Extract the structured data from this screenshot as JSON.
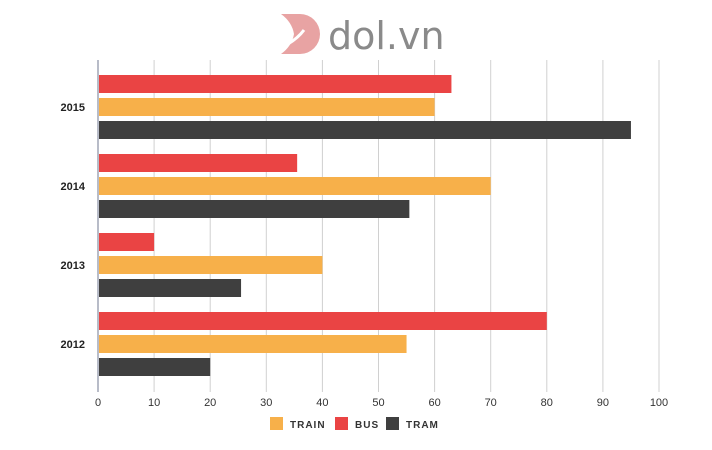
{
  "logo": {
    "text": "dol.vn",
    "color": "#e8a3a3"
  },
  "chart_data": {
    "type": "bar",
    "orientation": "horizontal",
    "title": "",
    "xlabel": "",
    "ylabel": "",
    "categories": [
      "2012",
      "2013",
      "2014",
      "2015"
    ],
    "series": [
      {
        "name": "BUS",
        "color": "#ea4444",
        "values": [
          80,
          10,
          35.5,
          63
        ]
      },
      {
        "name": "TRAIN",
        "color": "#f7b04a",
        "values": [
          55,
          40,
          70,
          60
        ]
      },
      {
        "name": "TRAM",
        "color": "#3f3f3f",
        "values": [
          20,
          25.5,
          55.5,
          95
        ]
      }
    ],
    "xlim": [
      0,
      100
    ],
    "xticks": [
      "0",
      "10",
      "20",
      "30",
      "40",
      "50",
      "60",
      "70",
      "80",
      "90",
      "100"
    ],
    "grid": true,
    "legend": {
      "position": "bottom",
      "order": [
        "TRAIN",
        "BUS",
        "TRAM"
      ]
    }
  }
}
